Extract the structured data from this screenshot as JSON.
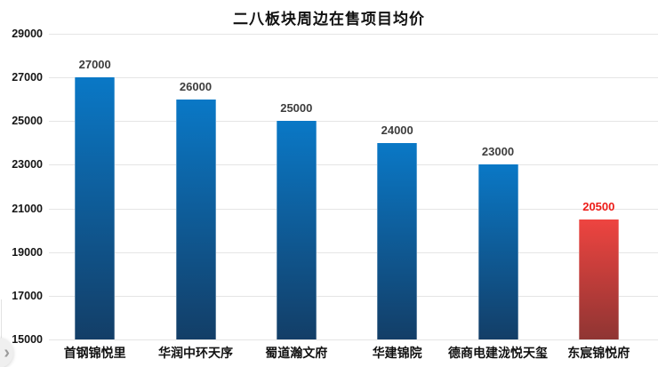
{
  "chart_data": {
    "type": "bar",
    "title": "二八板块周边在售项目均价",
    "categories": [
      "首钢锦悦里",
      "华润中环天序",
      "蜀道瀚文府",
      "华建锦院",
      "德商电建泷悦天玺",
      "东宸锦悦府"
    ],
    "values": [
      27000,
      26000,
      25000,
      24000,
      23000,
      20500
    ],
    "bar_value_labels": [
      "27000",
      "26000",
      "25000",
      "24000",
      "23000",
      "20500"
    ],
    "highlight_index": 5,
    "xlabel": "",
    "ylabel": "",
    "ylim": [
      15000,
      29000
    ],
    "ytick_step": 2000,
    "ytick_labels": [
      "29000",
      "27000",
      "25000",
      "23000",
      "21000",
      "19000",
      "17000",
      "15000"
    ],
    "grid": "horizontal-only",
    "legend": "none"
  },
  "styles": {
    "blue_bar_top": "#0a78c6",
    "blue_bar_bottom": "#133e67",
    "red_bar_top": "#ee4440",
    "red_bar_bottom": "#8f3533",
    "value_label_color": "#3d3d3d",
    "highlight_value_label_color": "#ed1c18",
    "gridline_color": "#e5e5e5",
    "text_color": "#111111"
  },
  "overlay": {
    "next_icon": "›"
  }
}
